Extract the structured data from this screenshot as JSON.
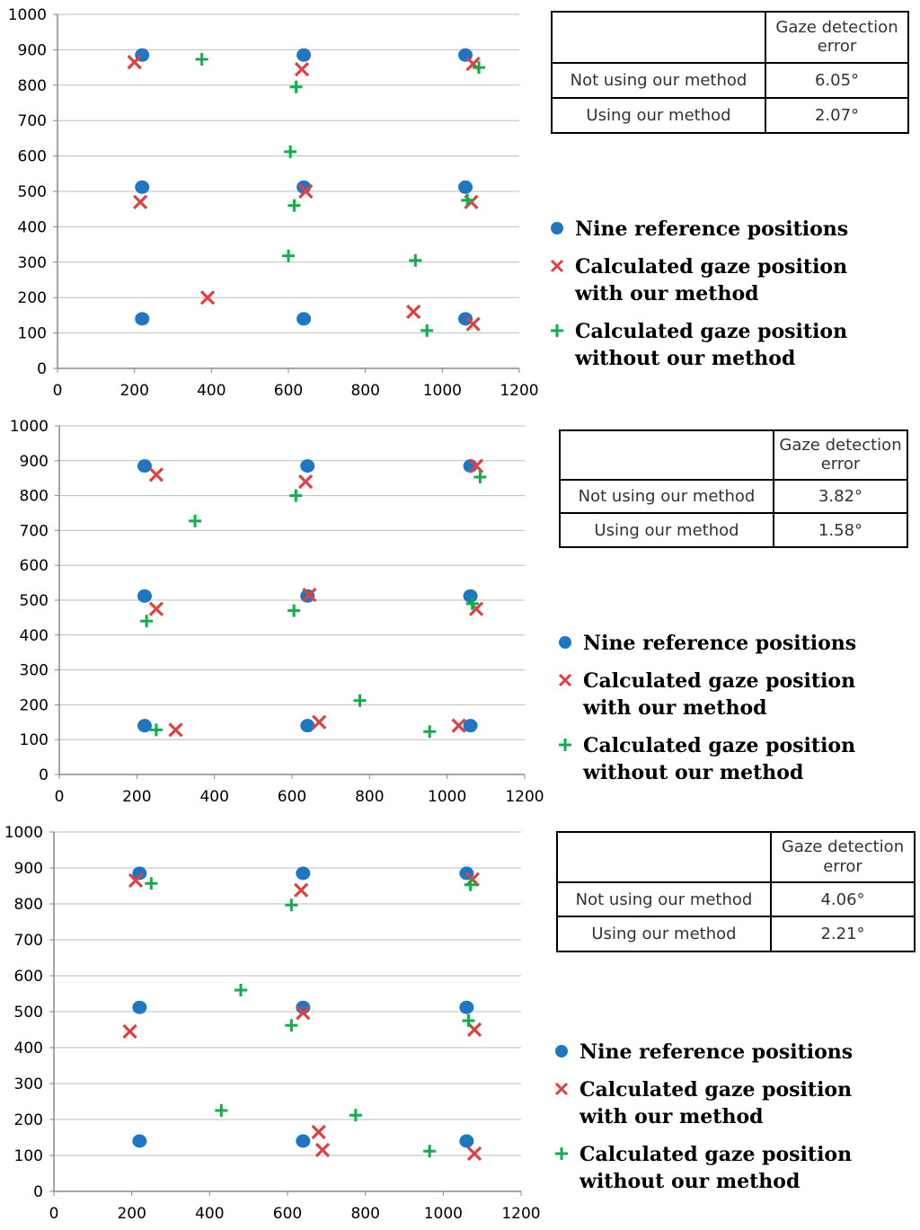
{
  "chart_data": [
    {
      "type": "scatter",
      "title": "",
      "xlabel": "",
      "ylabel": "",
      "xlim": [
        0,
        1200
      ],
      "ylim": [
        0,
        1000
      ],
      "x_ticks": [
        "0",
        "200",
        "400",
        "600",
        "800",
        "1000",
        "1200"
      ],
      "y_ticks": [
        "0",
        "100",
        "200",
        "300",
        "400",
        "500",
        "600",
        "700",
        "800",
        "900",
        "1000"
      ],
      "grid": "horizontal",
      "series": [
        {
          "name": "Nine reference positions",
          "marker": "circle",
          "color": "#1f77c4",
          "points": [
            [
              220,
              885
            ],
            [
              640,
              885
            ],
            [
              1060,
              885
            ],
            [
              220,
              512
            ],
            [
              640,
              512
            ],
            [
              1060,
              512
            ],
            [
              220,
              140
            ],
            [
              640,
              140
            ],
            [
              1060,
              140
            ]
          ]
        },
        {
          "name": "Calculated gaze position with our method",
          "marker": "x",
          "color": "#e0403f",
          "points": [
            [
              200,
              865
            ],
            [
              635,
              845
            ],
            [
              1080,
              860
            ],
            [
              215,
              470
            ],
            [
              645,
              500
            ],
            [
              1075,
              470
            ],
            [
              390,
              200
            ],
            [
              925,
              160
            ],
            [
              1080,
              125
            ]
          ]
        },
        {
          "name": "Calculated gaze position without our method",
          "marker": "plus",
          "color": "#0fb04a",
          "points": [
            [
              375,
              873
            ],
            [
              620,
              795
            ],
            [
              1095,
              850
            ],
            [
              605,
              612
            ],
            [
              615,
              460
            ],
            [
              1065,
              475
            ],
            [
              600,
              318
            ],
            [
              930,
              305
            ],
            [
              960,
              107
            ]
          ]
        }
      ]
    },
    {
      "type": "scatter",
      "title": "",
      "xlabel": "",
      "ylabel": "",
      "xlim": [
        0,
        1200
      ],
      "ylim": [
        0,
        1000
      ],
      "x_ticks": [
        "0",
        "200",
        "400",
        "600",
        "800",
        "1000",
        "1200"
      ],
      "y_ticks": [
        "0",
        "100",
        "200",
        "300",
        "400",
        "500",
        "600",
        "700",
        "800",
        "900",
        "1000"
      ],
      "grid": "horizontal",
      "series": [
        {
          "name": "Nine reference positions",
          "marker": "circle",
          "color": "#1f77c4",
          "points": [
            [
              220,
              885
            ],
            [
              640,
              885
            ],
            [
              1060,
              885
            ],
            [
              220,
              512
            ],
            [
              640,
              512
            ],
            [
              1060,
              512
            ],
            [
              220,
              140
            ],
            [
              640,
              140
            ],
            [
              1060,
              140
            ]
          ]
        },
        {
          "name": "Calculated gaze position with our method",
          "marker": "x",
          "color": "#e0403f",
          "points": [
            [
              250,
              860
            ],
            [
              635,
              840
            ],
            [
              1075,
              885
            ],
            [
              250,
              475
            ],
            [
              645,
              515
            ],
            [
              1075,
              475
            ],
            [
              300,
              128
            ],
            [
              670,
              150
            ],
            [
              1030,
              140
            ]
          ]
        },
        {
          "name": "Calculated gaze position without our method",
          "marker": "plus",
          "color": "#0fb04a",
          "points": [
            [
              350,
              727
            ],
            [
              610,
              800
            ],
            [
              1085,
              853
            ],
            [
              225,
              440
            ],
            [
              605,
              470
            ],
            [
              1065,
              490
            ],
            [
              775,
              212
            ],
            [
              955,
              123
            ],
            [
              250,
              128
            ]
          ]
        }
      ]
    },
    {
      "type": "scatter",
      "title": "",
      "xlabel": "",
      "ylabel": "",
      "xlim": [
        0,
        1200
      ],
      "ylim": [
        0,
        1000
      ],
      "x_ticks": [
        "0",
        "200",
        "400",
        "600",
        "800",
        "1000",
        "1200"
      ],
      "y_ticks": [
        "0",
        "100",
        "200",
        "300",
        "400",
        "500",
        "600",
        "700",
        "800",
        "900",
        "1000"
      ],
      "grid": "horizontal",
      "series": [
        {
          "name": "Nine reference positions",
          "marker": "circle",
          "color": "#1f77c4",
          "points": [
            [
              220,
              885
            ],
            [
              640,
              885
            ],
            [
              1060,
              885
            ],
            [
              220,
              512
            ],
            [
              640,
              512
            ],
            [
              1060,
              512
            ],
            [
              220,
              140
            ],
            [
              640,
              140
            ],
            [
              1060,
              140
            ]
          ]
        },
        {
          "name": "Calculated gaze position with our method",
          "marker": "x",
          "color": "#e0403f",
          "points": [
            [
              210,
              865
            ],
            [
              635,
              838
            ],
            [
              1075,
              868
            ],
            [
              195,
              445
            ],
            [
              640,
              497
            ],
            [
              1080,
              450
            ],
            [
              680,
              165
            ],
            [
              690,
              115
            ],
            [
              1080,
              105
            ]
          ]
        },
        {
          "name": "Calculated gaze position without our method",
          "marker": "plus",
          "color": "#0fb04a",
          "points": [
            [
              250,
              857
            ],
            [
              610,
              797
            ],
            [
              1070,
              853
            ],
            [
              480,
              560
            ],
            [
              610,
              462
            ],
            [
              1065,
              475
            ],
            [
              430,
              225
            ],
            [
              775,
              212
            ],
            [
              965,
              112
            ]
          ]
        }
      ]
    }
  ],
  "tables": [
    {
      "header": [
        "",
        "Gaze detection error"
      ],
      "rows": [
        [
          "Not using our method",
          "6.05°"
        ],
        [
          "Using our method",
          "2.07°"
        ]
      ]
    },
    {
      "header": [
        "",
        "Gaze detection error"
      ],
      "rows": [
        [
          "Not using our method",
          "3.82°"
        ],
        [
          "Using our method",
          "1.58°"
        ]
      ]
    },
    {
      "header": [
        "",
        "Gaze detection error"
      ],
      "rows": [
        [
          "Not using our method",
          "4.06°"
        ],
        [
          "Using our method",
          "2.21°"
        ]
      ]
    }
  ],
  "legend": [
    {
      "label": "Nine reference positions",
      "marker": "circle",
      "color": "#1f77c4"
    },
    {
      "label": "Calculated gaze position\nwith our method",
      "marker": "x",
      "color": "#e0403f"
    },
    {
      "label": "Calculated gaze position\nwithout our method",
      "marker": "plus",
      "color": "#0fb04a"
    }
  ]
}
